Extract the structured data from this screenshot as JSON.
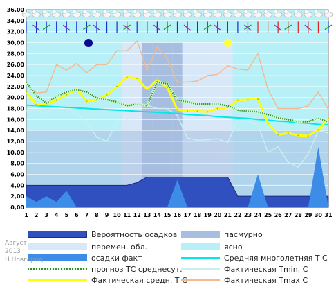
{
  "chart_data": {
    "type": "line",
    "y_ticks": [
      "0,00",
      "2,00",
      "4,00",
      "6,00",
      "8,00",
      "10,00",
      "12,00",
      "14,00",
      "16,00",
      "18,00",
      "20,00",
      "22,00",
      "24,00",
      "26,00",
      "28,00",
      "30,00",
      "32,00",
      "34,00",
      "36,00"
    ],
    "ylim": [
      0,
      36
    ],
    "x": [
      1,
      2,
      3,
      4,
      5,
      6,
      7,
      8,
      9,
      10,
      11,
      12,
      13,
      14,
      15,
      16,
      17,
      18,
      19,
      20,
      21,
      22,
      23,
      24,
      25,
      26,
      27,
      28,
      29,
      30,
      31
    ],
    "sky": [
      "clear",
      "clear",
      "clear",
      "clear",
      "clear",
      "clear",
      "clear",
      "clear",
      "clear",
      "clear",
      "variable",
      "variable",
      "cloudy",
      "cloudy",
      "cloudy",
      "cloudy",
      "variable",
      "variable",
      "variable",
      "variable",
      "variable",
      "clear",
      "clear",
      "clear",
      "clear",
      "clear",
      "clear",
      "clear",
      "clear",
      "clear",
      "clear"
    ],
    "precip_probability": [
      4,
      4,
      4,
      4,
      4,
      4,
      4,
      4,
      4,
      4,
      4,
      4.5,
      5.5,
      5.5,
      5.5,
      5.5,
      5.5,
      5.5,
      5.5,
      5.5,
      5.5,
      2,
      2,
      2,
      2,
      2,
      2,
      2,
      2,
      2,
      2
    ],
    "precip_fact": [
      2,
      1,
      2,
      1,
      3,
      0,
      0,
      0,
      0,
      0,
      0,
      0,
      0,
      0,
      0,
      5,
      0,
      0,
      0,
      0,
      0,
      0,
      0,
      6,
      0,
      0,
      0,
      0,
      0,
      11,
      0
    ],
    "series": [
      {
        "name": "Фактическая Tmax C",
        "color": "#f4b98f",
        "values": [
          22.5,
          20.8,
          21,
          26,
          25,
          26.2,
          24.5,
          26,
          26,
          28.5,
          28.5,
          30.3,
          25,
          29.2,
          27.2,
          22.8,
          22.8,
          23,
          24,
          24.2,
          25.8,
          25.2,
          25,
          28,
          21.5,
          18,
          18,
          18,
          18.5,
          21,
          17.8
        ]
      },
      {
        "name": "Фактическая Tmin, C",
        "color": "#c8f0f0",
        "values": [
          17.6,
          17.8,
          17,
          18.7,
          18,
          17,
          15.5,
          12.8,
          12,
          15.5,
          15.8,
          19,
          18.6,
          18,
          18,
          16.7,
          12.6,
          12.2,
          12.3,
          12.5,
          11.8,
          15.8,
          15.6,
          15,
          10,
          11,
          8.2,
          7.3,
          9.7,
          14,
          13.5
        ]
      },
      {
        "name": "Средняя многолетняя Т С",
        "color": "#00e8e8",
        "values": [
          18.6,
          18.5,
          18.4,
          18.3,
          18.2,
          18.1,
          18,
          17.9,
          17.8,
          17.7,
          17.6,
          17.5,
          17.4,
          17.3,
          17.2,
          17.1,
          16.9,
          16.8,
          16.7,
          16.5,
          16.4,
          16.3,
          16.2,
          16,
          15.9,
          15.7,
          15.6,
          15.4,
          15.3,
          15.1,
          15
        ]
      },
      {
        "name": "Фактическая средн. Т С",
        "color": "#ffff00",
        "values": [
          21,
          18.7,
          18.8,
          19.5,
          20.5,
          21.5,
          19.3,
          19.6,
          20.5,
          22,
          23.7,
          23.5,
          21.5,
          23.2,
          21.8,
          17.8,
          17.5,
          17.5,
          17.4,
          18,
          18.2,
          19.5,
          19.6,
          19.7,
          15.3,
          13.2,
          13.5,
          13.1,
          13,
          14.1,
          16.2
        ]
      },
      {
        "name": "прогноз ТС среднесут.",
        "color": "#3a8a3a",
        "values": [
          22.8,
          20.3,
          19,
          20.2,
          21,
          21.4,
          21,
          19.9,
          19.6,
          19.2,
          18.5,
          18.8,
          18.5,
          22.8,
          22.5,
          19.5,
          19.2,
          18.8,
          18.8,
          18.8,
          18.5,
          17.7,
          17.5,
          17.4,
          16.9,
          16.3,
          16,
          15.6,
          15.6,
          16.3,
          15.5
        ]
      }
    ]
  },
  "legend": [
    {
      "key": "precip_prob",
      "label": "Вероятность осадков"
    },
    {
      "key": "cloudy",
      "label": "пасмурно"
    },
    {
      "key": "variable",
      "label": "перемен. обл."
    },
    {
      "key": "clear",
      "label": "ясно"
    },
    {
      "key": "precip_fact",
      "label": "осадки факт"
    },
    {
      "key": "norm",
      "label": "Средняя многолетняя Т С"
    },
    {
      "key": "forecast",
      "label": "прогноз ТС среднесут."
    },
    {
      "key": "tmin",
      "label": "Фактическая Tmin, C"
    },
    {
      "key": "tmean",
      "label": "Фактическая средн. Т С"
    },
    {
      "key": "tmax",
      "label": "Фактическая Tmax C"
    }
  ],
  "footer": {
    "month": "Август",
    "year": "2013",
    "city": "Н.Новгород"
  },
  "colors": {
    "clear_bg": "#b8f0f8",
    "variable_bg": "#d8e8f8",
    "cloudy_bg": "#a8bee0",
    "precip_prob": "#3050c0",
    "precip_fact": "#3c8ce8"
  }
}
